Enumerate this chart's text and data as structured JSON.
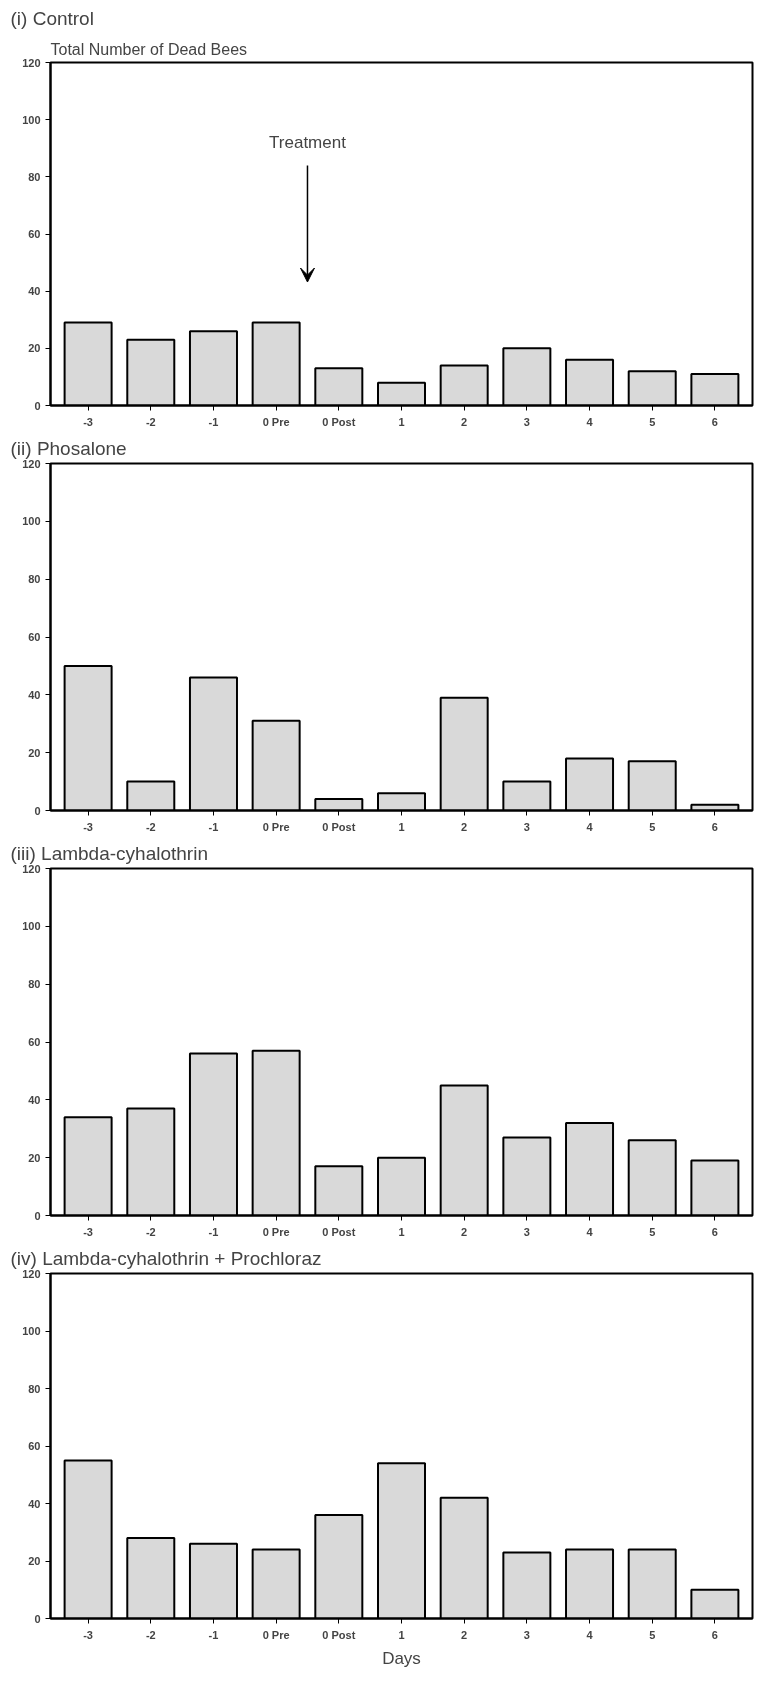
{
  "chart_data": [
    {
      "type": "bar",
      "title": "(i)  Control",
      "ylabel": "Total Number of Dead Bees",
      "categories": [
        "-3",
        "-2",
        "-1",
        "0 Pre",
        "0 Post",
        "1",
        "2",
        "3",
        "4",
        "5",
        "6"
      ],
      "values": [
        29,
        23,
        26,
        29,
        13,
        8,
        14,
        20,
        16,
        12,
        11
      ],
      "color": "#d9d9d9",
      "ylim": [
        0,
        120
      ],
      "yticks": [
        0,
        20,
        40,
        60,
        80,
        100,
        120
      ],
      "annotations": [
        "Treatment"
      ]
    },
    {
      "type": "bar",
      "title": "(ii)  Phosalone",
      "categories": [
        "-3",
        "-2",
        "-1",
        "0 Pre",
        "0 Post",
        "1",
        "2",
        "3",
        "4",
        "5",
        "6"
      ],
      "values": [
        50,
        10,
        46,
        31,
        4,
        6,
        39,
        10,
        18,
        17,
        2
      ],
      "color": "#d9d9d9",
      "ylim": [
        0,
        120
      ],
      "yticks": [
        0,
        20,
        40,
        60,
        80,
        100,
        120
      ]
    },
    {
      "type": "bar",
      "title": "(iii)  Lambda-cyhalothrin",
      "categories": [
        "-3",
        "-2",
        "-1",
        "0 Pre",
        "0 Post",
        "1",
        "2",
        "3",
        "4",
        "5",
        "6"
      ],
      "values": [
        34,
        37,
        56,
        57,
        17,
        20,
        45,
        27,
        32,
        26,
        19
      ],
      "color": "#d9d9d9",
      "ylim": [
        0,
        120
      ],
      "yticks": [
        0,
        20,
        40,
        60,
        80,
        100,
        120
      ]
    },
    {
      "type": "bar",
      "title": "(iv)  Lambda-cyhalothrin + Prochloraz",
      "xlabel": "Days",
      "categories": [
        "-3",
        "-2",
        "-1",
        "0 Pre",
        "0 Post",
        "1",
        "2",
        "3",
        "4",
        "5",
        "6"
      ],
      "values": [
        55,
        28,
        26,
        24,
        36,
        54,
        42,
        23,
        24,
        24,
        10
      ],
      "color": "#d9d9d9",
      "ylim": [
        0,
        120
      ],
      "yticks": [
        0,
        20,
        40,
        60,
        80,
        100,
        120
      ]
    }
  ]
}
